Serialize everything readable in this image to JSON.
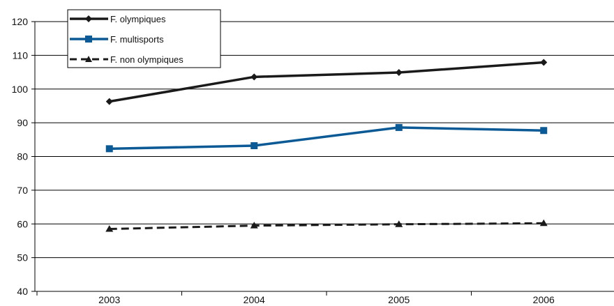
{
  "chart_data": {
    "type": "line",
    "x": [
      "2003",
      "2004",
      "2005",
      "2006"
    ],
    "ylim": [
      40,
      120
    ],
    "yticks": [
      40,
      50,
      60,
      70,
      80,
      90,
      100,
      110,
      120
    ],
    "grid": true,
    "legend_position": "top-left",
    "series": [
      {
        "name": "F. olympiques",
        "values": [
          96.3,
          103.6,
          104.9,
          107.9
        ],
        "color": "#1a1a1a",
        "marker": "diamond",
        "dash": "solid"
      },
      {
        "name": "F. multisports",
        "values": [
          82.3,
          83.2,
          88.6,
          87.7
        ],
        "color": "#0b5a96",
        "marker": "square",
        "dash": "solid"
      },
      {
        "name": "F. non olympiques",
        "values": [
          58.5,
          59.5,
          59.9,
          60.2
        ],
        "color": "#1a1a1a",
        "marker": "triangle",
        "dash": "dashed"
      }
    ]
  }
}
